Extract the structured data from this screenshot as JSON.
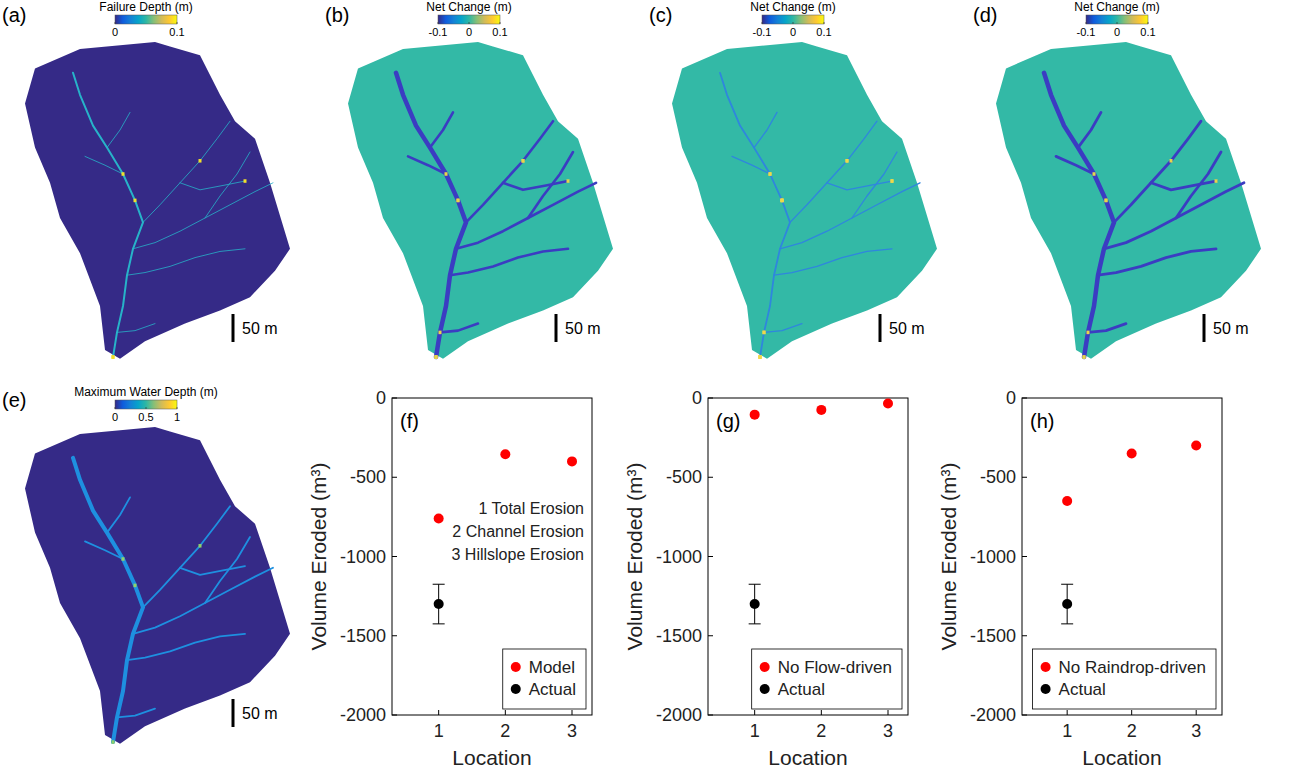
{
  "chart_data": [
    {
      "type": "map",
      "label": "(a)",
      "title": "Failure Depth (m)",
      "colorbar_range": [
        0,
        0.1
      ],
      "colorbar_ticks": [
        0,
        0.1
      ],
      "scale_label": "50 m"
    },
    {
      "type": "map",
      "label": "(b)",
      "title": "Net Change (m)",
      "colorbar_range": [
        -0.1,
        0.1
      ],
      "colorbar_ticks": [
        -0.1,
        0,
        0.1
      ],
      "scale_label": "50 m"
    },
    {
      "type": "map",
      "label": "(c)",
      "title": "Net Change (m)",
      "colorbar_range": [
        -0.1,
        0.1
      ],
      "colorbar_ticks": [
        -0.1,
        0,
        0.1
      ],
      "scale_label": "50 m"
    },
    {
      "type": "map",
      "label": "(d)",
      "title": "Net Change (m)",
      "colorbar_range": [
        -0.1,
        0.1
      ],
      "colorbar_ticks": [
        -0.1,
        0,
        0.1
      ],
      "scale_label": "50 m"
    },
    {
      "type": "map",
      "label": "(e)",
      "title": "Maximum Water Depth (m)",
      "colorbar_range": [
        0,
        1
      ],
      "colorbar_ticks": [
        0,
        0.5,
        1
      ],
      "scale_label": "50 m"
    },
    {
      "type": "scatter",
      "label": "(f)",
      "x_label": "Location",
      "y_label": "Volume Eroded (m³)",
      "xlim": [
        0.3,
        3.3
      ],
      "xticks": [
        1,
        2,
        3
      ],
      "ylim": [
        -2000,
        0
      ],
      "yticks": [
        -2000,
        -1500,
        -1000,
        -500,
        0
      ],
      "grid": false,
      "legend": "lower right",
      "annotations": [
        "1 Total Erosion",
        "2 Channel Erosion",
        "3 Hillslope Erosion"
      ],
      "series": [
        {
          "name": "Model",
          "color": "#ff0000",
          "marker": "circle",
          "x": [
            1,
            2,
            3
          ],
          "values": [
            -760,
            -355,
            -400
          ]
        },
        {
          "name": "Actual",
          "color": "#000000",
          "marker": "circle",
          "x": [
            1
          ],
          "values": [
            -1300
          ],
          "error": [
            125
          ]
        }
      ]
    },
    {
      "type": "scatter",
      "label": "(g)",
      "x_label": "Location",
      "y_label": "Volume Eroded (m³)",
      "xlim": [
        0.3,
        3.3
      ],
      "xticks": [
        1,
        2,
        3
      ],
      "ylim": [
        -2000,
        0
      ],
      "yticks": [
        -2000,
        -1500,
        -1000,
        -500,
        0
      ],
      "grid": false,
      "legend": "lower right",
      "series": [
        {
          "name": "No Flow-driven",
          "color": "#ff0000",
          "marker": "circle",
          "x": [
            1,
            2,
            3
          ],
          "values": [
            -105,
            -75,
            -35
          ]
        },
        {
          "name": "Actual",
          "color": "#000000",
          "marker": "circle",
          "x": [
            1
          ],
          "values": [
            -1300
          ],
          "error": [
            125
          ]
        }
      ]
    },
    {
      "type": "scatter",
      "label": "(h)",
      "x_label": "Location",
      "y_label": "Volume Eroded (m³)",
      "xlim": [
        0.3,
        3.4
      ],
      "xticks": [
        1,
        2,
        3
      ],
      "ylim": [
        -2000,
        0
      ],
      "yticks": [
        -2000,
        -1500,
        -1000,
        -500,
        0
      ],
      "grid": false,
      "legend": "lower right",
      "series": [
        {
          "name": "No Raindrop-driven",
          "color": "#ff0000",
          "marker": "circle",
          "x": [
            1,
            2,
            3
          ],
          "values": [
            -650,
            -350,
            -300
          ]
        },
        {
          "name": "Actual",
          "color": "#000000",
          "marker": "circle",
          "x": [
            1
          ],
          "values": [
            -1300
          ],
          "error": [
            125
          ]
        }
      ]
    }
  ]
}
